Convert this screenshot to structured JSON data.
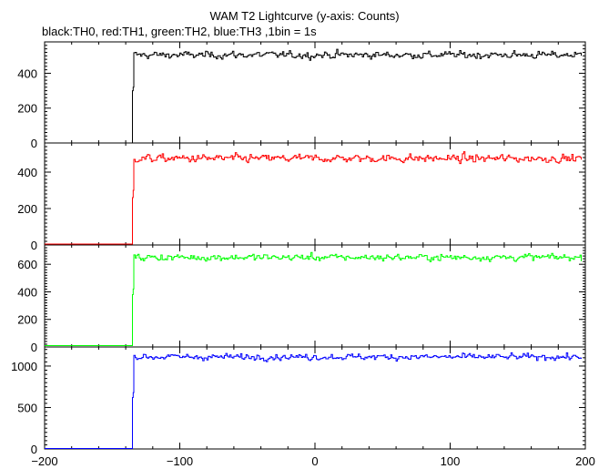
{
  "title": "WAM T2 Lightcurve (y-axis: Counts)",
  "subtitle": "black:TH0, red:TH1, green:TH2, blue:TH3 ,1bin = 1s",
  "chart_data": [
    {
      "type": "line",
      "series_key": "TH0",
      "color": "#000000",
      "xlim": [
        -200,
        200
      ],
      "ylim": [
        0,
        580
      ],
      "yticks": [
        0,
        200,
        400
      ],
      "yticks_minor_step": 20,
      "xticks": [
        -200,
        -100,
        0,
        100,
        200
      ],
      "xticks_minor_step": 20,
      "step": {
        "t_onset": -135,
        "pre_level": 0,
        "onset_values": [
          300,
          320
        ],
        "post_mean": 505,
        "noise_sd": 17
      },
      "x_tick_labels_shown": false
    },
    {
      "type": "line",
      "series_key": "TH1",
      "color": "#ff0000",
      "xlim": [
        -200,
        200
      ],
      "ylim": [
        0,
        560
      ],
      "yticks": [
        0,
        200,
        400
      ],
      "yticks_minor_step": 20,
      "xticks": [
        -200,
        -100,
        0,
        100,
        200
      ],
      "xticks_minor_step": 20,
      "step": {
        "t_onset": -135,
        "pre_level": 5,
        "onset_values": [
          260,
          300
        ],
        "post_mean": 475,
        "noise_sd": 18
      },
      "x_tick_labels_shown": false
    },
    {
      "type": "line",
      "series_key": "TH2",
      "color": "#00ff00",
      "xlim": [
        -200,
        200
      ],
      "ylim": [
        0,
        740
      ],
      "yticks": [
        0,
        200,
        400,
        600
      ],
      "yticks_minor_step": 20,
      "xticks": [
        -200,
        -100,
        0,
        100,
        200
      ],
      "xticks_minor_step": 20,
      "step": {
        "t_onset": -135,
        "pre_level": 10,
        "onset_values": [
          380,
          420
        ],
        "post_mean": 650,
        "noise_sd": 20
      },
      "x_tick_labels_shown": false
    },
    {
      "type": "line",
      "series_key": "TH3",
      "color": "#0000ff",
      "xlim": [
        -200,
        200
      ],
      "ylim": [
        0,
        1230
      ],
      "yticks": [
        0,
        500,
        1000
      ],
      "yticks_minor_step": 50,
      "xticks": [
        -200,
        -100,
        0,
        100,
        200
      ],
      "xticks_minor_step": 20,
      "x_tick_labels": [
        "−200",
        "−100",
        "0",
        "100",
        "200"
      ],
      "step": {
        "t_onset": -135,
        "pre_level": 5,
        "onset_values": [
          620,
          680
        ],
        "post_mean": 1110,
        "noise_sd": 30
      },
      "x_tick_labels_shown": true
    }
  ]
}
